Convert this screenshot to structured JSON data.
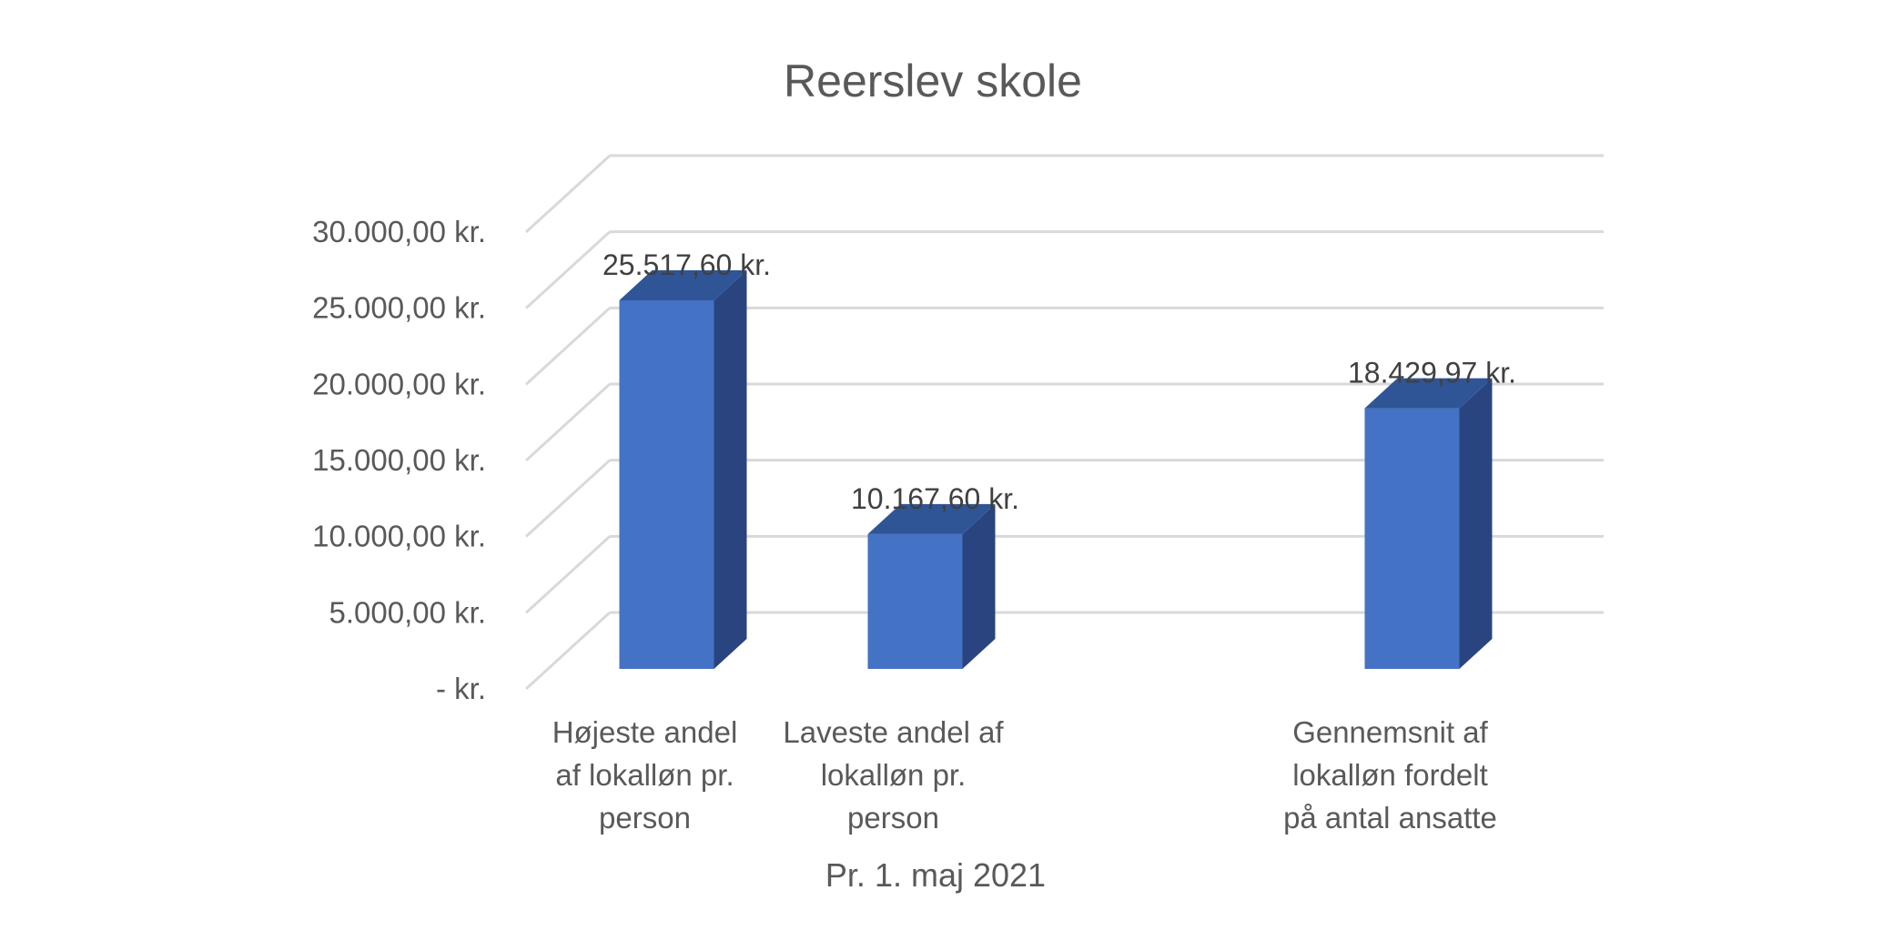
{
  "chart_data": {
    "type": "bar",
    "style": "3d-column",
    "title": "Reerslev skole",
    "xlabel": "Pr. 1. maj 2021",
    "ylabel": "",
    "ylim": [
      0,
      30000
    ],
    "y_ticks": [
      0,
      5000,
      10000,
      15000,
      20000,
      25000,
      30000
    ],
    "y_tick_labels": [
      "-   kr.",
      "5.000,00 kr.",
      "10.000,00 kr.",
      "15.000,00 kr.",
      "20.000,00 kr.",
      "25.000,00 kr.",
      "30.000,00 kr."
    ],
    "grid": true,
    "legend": "none",
    "categories": [
      [
        "Højeste andel",
        "af lokalløn pr.",
        "person"
      ],
      [
        "Laveste andel af",
        "lokalløn pr.",
        "person"
      ],
      [],
      [
        "Gennemsnit af",
        "lokalløn fordelt",
        "på antal ansatte"
      ]
    ],
    "values": [
      25517.6,
      10167.6,
      null,
      18429.97
    ],
    "data_labels": [
      "25.517,60 kr.",
      "10.167,60 kr.",
      "",
      "18.429,97 kr."
    ],
    "colors": {
      "bar_front": "#4472C4",
      "bar_side": "#2A4480",
      "bar_top": "#2F5597",
      "grid": "#D9D9D9",
      "text": "#595959"
    }
  }
}
